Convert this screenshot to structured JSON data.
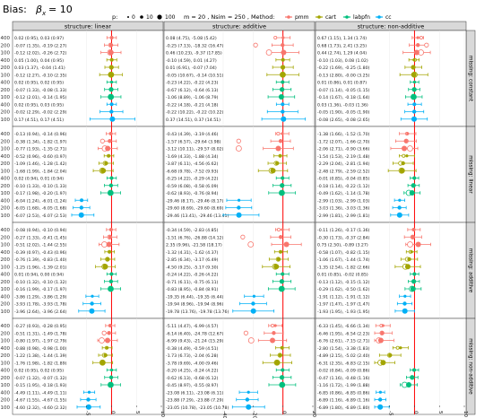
{
  "title_prefix": "Bias:",
  "title_formula": "β",
  "title_sub": "x",
  "title_suffix": "= 10",
  "legend": {
    "p_label": "p:",
    "p_values": [
      "0",
      "10",
      "100"
    ],
    "m_text": "m = 20 , Nsim = 250 , Method:",
    "methods": [
      "pmm",
      "cart",
      "labpfn",
      "cc"
    ]
  },
  "colors": {
    "pmm": "#F8766D",
    "cart": "#A3A500",
    "labpfn": "#00BF7D",
    "cc": "#00B0F6",
    "zero_line": "#ff0000"
  },
  "columns": [
    "structure: linear",
    "structure: additive",
    "structure: non-additive"
  ],
  "rows": [
    "missing: constant",
    "missing: linear",
    "missing: additive",
    "missing: non-additive"
  ],
  "chart_data": {
    "type": "forest",
    "panel_x_ticks": [
      {
        "ticks": [
          -5,
          0,
          5,
          10
        ],
        "labels": [
          "-5",
          "0",
          "5",
          "10"
        ],
        "xlim": [
          -8,
          10
        ]
      },
      {
        "ticks": [
          -40,
          -20,
          0,
          20
        ],
        "labels": [
          "-40",
          "-20",
          "0",
          "20"
        ],
        "xlim": [
          -40,
          20
        ]
      },
      {
        "ticks": [
          -5,
          0,
          5,
          10
        ],
        "labels": [
          "-5",
          "0",
          "5",
          "10"
        ],
        "xlim": [
          -8,
          10
        ]
      }
    ],
    "reference_line": 0,
    "row_labels": [
      "400",
      "200",
      "100",
      "400",
      "200",
      "100",
      "400",
      "200",
      "100",
      "400",
      "200",
      "100"
    ],
    "panels": [
      [
        [
          "0.02 (0.95), 0.03 (0.97)",
          "-0.07 (1.35), -0.19 (2.27)",
          "-0.12 (2.02), -0.26 (2.72)",
          "0.05 (1.00), 0.04 (0.95)",
          "0.03 (1.37), -0.04 (1.41)",
          "-0.12 (2.27), -0.10 (2.35)",
          "0.02 (0.95), 0.02 (0.95)",
          "-0.07 (1.33), -0.08 (1.33)",
          "-0.12 (2.01), -0.14 (1.95)",
          "0.02 (0.95), 0.03 (0.95)",
          "-0.02 (2.29), -0.02 (2.29)",
          "0.17 (4.51), 0.17 (4.51)"
        ],
        [
          "-0.13 (0.94), -0.14 (0.96)",
          "-0.38 (1.34), -1.82 (1.97)",
          "-0.77 (1.93), -1.35 (2.71)",
          "-0.52 (0.96), -0.60 (0.97)",
          "-1.09 (1.46), -1.28 (1.42)",
          "-1.68 (1.99), -1.84 (2.04)",
          "0.02 (0.94), 0.01 (0.94)",
          "-0.10 (1.33), -0.10 (1.33)",
          "-0.17 (1.98), -0.20 (1.97)",
          "-6.04 (1.24), -6.01 (1.24)",
          "-6.05 (1.68), -6.05 (1.68)",
          "-6.07 (2.53), -6.07 (2.53)"
        ],
        [
          "-0.08 (0.94), -0.10 (0.94)",
          "-0.27 (1.33), -0.41 (1.45)",
          "-0.51 (2.02), -1.44 (2.55)",
          "-0.39 (0.97), -0.43 (0.96)",
          "-0.76 (1.39), -0.83 (1.40)",
          "-1.25 (1.96), -1.39 (2.01)",
          "0.01 (0.94), 0.00 (0.94)",
          "-0.10 (1.32), -0.10 (1.32)",
          "-0.16 (1.99), -0.17 (1.97)",
          "-3.86 (1.29), -3.86 (1.29)",
          "-3.93 (1.78), -3.93 (1.78)",
          "-3.96 (2.64), -3.96 (2.64)"
        ],
        [
          "-0.27 (0.93), -0.28 (0.95)",
          "-0.51 (1.31), -1.49 (1.78)",
          "-0.80 (1.97), -1.97 (2.79)",
          "-0.88 (0.98), -0.98 (1.00)",
          "-1.22 (1.38), -1.44 (1.39)",
          "-1.76 (1.98), -1.82 (1.89)",
          "0.02 (0.95), 0.02 (0.95)",
          "-0.07 (1.32), -0.07 (1.32)",
          "-0.15 (1.95), -0.18 (1.93)",
          "-4.49 (1.11), -4.49 (1.11)",
          "-4.67 (1.55), -4.67 (1.55)",
          "-4.60 (2.32), -4.60 (2.32)"
        ]
      ],
      [
        [
          "0.08 (4.75), -5.08 (5.42)",
          "-0.25 (7.13), -18.32 (16.47)",
          "0.46 (10.23), -9.37 (17.85)",
          "-0.10 (4.59), 0.01 (4.27)",
          "0.01 (6.91), -0.07 (7.04)",
          "-0.05 (10.67), -0.14 (10.51)",
          "-0.23 (4.22), -0.22 (4.23)",
          "-0.67 (6.12), -0.64 (6.13)",
          "-1.06 (8.89), -1.06 (8.79)",
          "-0.22 (4.18), -0.21 (4.18)",
          "-0.22 (10.22), -0.22 (10.22)",
          "0.37 (14.51), 0.37 (14.51)"
        ],
        [
          "-0.43 (4.39), -3.19 (4.46)",
          "-1.57 (6.57), -29.64 (3.98)",
          "-3.12 (10.11), -29.57 (8.02)",
          "-1.69 (4.33), -1.88 (4.34)",
          "-3.87 (6.11), -4.56 (6.62)",
          "-6.68 (9.78), -7.52 (9.93)",
          "-0.25 (4.22), -0.29 (4.22)",
          "-0.59 (6.08), -0.58 (6.09)",
          "-0.62 (8.93), -0.76 (8.94)",
          "-29.46 (8.17), -29.46 (8.17)",
          "-29.60 (8.69), -29.60 (8.69)",
          "-29.46 (13.41), -29.46 (13.41)"
        ],
        [
          "-0.34 (4.59), -2.83 (4.85)",
          "-1.51 (6.76), -26.88 (14.12)",
          "2.35 (9.96), -21.58 (18.17)",
          "-1.32 (4.31), -1.62 (4.37)",
          "-2.85 (6.34), -3.17 (6.49)",
          "-4.50 (9.25), -5.17 (9.30)",
          "-0.24 (4.22), -0.26 (4.22)",
          "-0.71 (6.11), -0.75 (6.11)",
          "-0.83 (8.95), -0.84 (8.91)",
          "-19.35 (6.44), -19.35 (6.44)",
          "-19.94 (8.96), -19.94 (8.96)",
          "-19.78 (13.76), -19.78 (13.76)"
        ],
        [
          "-5.11 (4.47), -6.99 (4.57)",
          "-6.14 (6.40), -24.78 (12.67)",
          "-6.99 (9.43), -21.24 (15.29)",
          "-0.38 (4.49), -0.59 (4.51)",
          "-1.73 (6.73), -2.04 (6.28)",
          "-3.78 (9.69), -4.00 (9.46)",
          "-0.20 (4.25), -0.24 (4.22)",
          "-0.62 (6.13), -0.68 (6.12)",
          "-0.45 (8.97), -0.55 (8.97)",
          "-23.08 (6.11), -23.08 (6.11)",
          "-23.88 (7.29), -23.88 (7.29)",
          "-23.05 (10.78), -23.05 (10.78)"
        ]
      ],
      [
        [
          "0.67 (1.15), 1.34 (1.74)",
          "0.68 (1.73), 2.41 (3.25)",
          "0.44 (2.74), 1.29 (4.04)",
          "-0.10 (1.03), 0.08 (1.02)",
          "-0.22 (1.69), -0.25 (1.80)",
          "-0.13 (2.80), -0.00 (3.25)",
          "0.01 (0.86), 0.01 (0.87)",
          "-0.07 (1.14), -0.05 (1.15)",
          "-0.14 (1.67), -0.18 (1.64)",
          "0.03 (1.36), -0.03 (1.36)",
          "-0.05 (1.90), -0.05 (1.90)",
          "-0.08 (2.65), -0.08 (2.65)"
        ],
        [
          "-1.38 (1.66), -1.52 (1.70)",
          "-1.72 (2.07), -1.66 (2.70)",
          "-2.06 (2.71), -0.90 (3.66)",
          "-1.54 (1.53), -2.19 (1.48)",
          "-2.29 (2.04), -2.81 (1.94)",
          "-2.48 (2.79), -2.59 (2.52)",
          "-0.01 (0.85), -0.04 (0.85)",
          "-0.18 (1.14), -0.22 (1.12)",
          "-0.49 (1.62), -1.14 (1.78)",
          "-2.99 (1.03), -2.99 (1.03)",
          "-3.03 (1.36), -3.03 (1.36)",
          "-2.99 (1.81), -2.99 (1.81)"
        ],
        [
          "-0.11 (1.26), -0.17 (1.36)",
          "-0.30 (1.73), -0.37 (2.84)",
          "0.75 (2.50), -0.89 (3.27)",
          "-0.58 (1.07), -0.82 (1.15)",
          "-1.06 (1.67), -1.44 (1.74)",
          "-1.35 (2.54), -1.82 (2.66)",
          "0.01 (0.85), -0.02 (0.85)",
          "-0.13 (1.12), -0.15 (1.12)",
          "-0.29 (1.62), -0.50 (1.62)",
          "-1.91 (1.12), -1.91 (1.12)",
          "-1.97 (1.47), -1.97 (1.47)",
          "-1.93 (1.95), -1.93 (1.95)"
        ],
        [
          "-6.33 (1.45), -6.66 (1.34)",
          "-6.46 (1.95), -6.54 (2.23)",
          "-6.76 (2.61), -7.15 (2.71)",
          "-2.80 (1.54), -3.38 (1.83)",
          "-4.89 (2.15), -5.02 (2.40)",
          "-6.31 (2.35), -6.83 (2.15)",
          "-0.02 (0.84), -0.09 (0.86)",
          "-0.47 (1.16), -0.48 (1.16)",
          "-1.16 (1.72), -1.99 (1.88)",
          "-6.85 (0.86), -6.85 (0.86)",
          "-6.89 (1.16), -6.89 (1.16)",
          "-6.89 (1.80), -6.89 (1.80)"
        ]
      ]
    ]
  }
}
